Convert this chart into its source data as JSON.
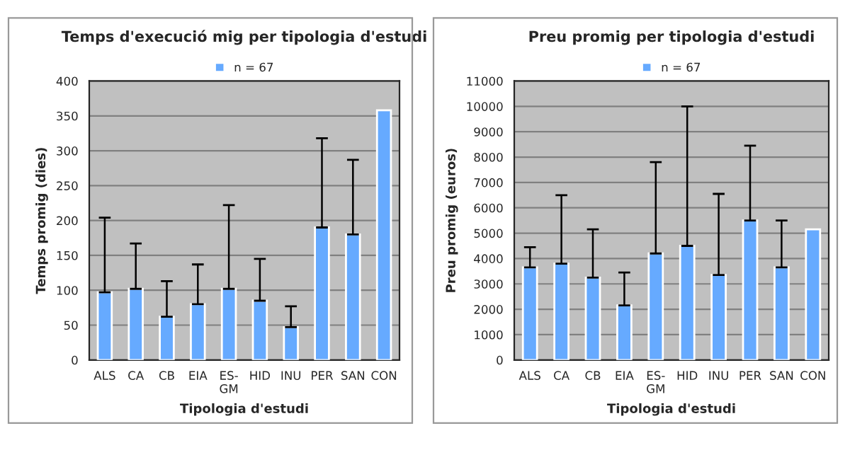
{
  "chart_data": [
    {
      "type": "bar",
      "title": "Temps d'execució mig per tipologia d'estudi",
      "xlabel": "Tipologia d'estudi",
      "ylabel": "Temps promig (dies)",
      "legend": "top",
      "categories": [
        "ALS",
        "CA",
        "CB",
        "EIA",
        "ES-\nGM",
        "HID",
        "INU",
        "PER",
        "SAN",
        "CON"
      ],
      "series": [
        {
          "name": "n = 67",
          "color": "#66aaff",
          "values": [
            97,
            102,
            62,
            80,
            102,
            85,
            47,
            190,
            180,
            358
          ],
          "errors": [
            [
              97,
              204
            ],
            [
              102,
              167
            ],
            [
              62,
              113
            ],
            [
              80,
              137
            ],
            [
              102,
              222
            ],
            [
              85,
              145
            ],
            [
              47,
              77
            ],
            [
              190,
              318
            ],
            [
              180,
              287
            ],
            null
          ]
        }
      ],
      "ylim": [
        0,
        400
      ],
      "yticks": [
        0,
        50,
        100,
        150,
        200,
        250,
        300,
        350,
        400
      ],
      "grid": "y"
    },
    {
      "type": "bar",
      "title": "Preu promig per tipologia d'estudi",
      "xlabel": "Tipologia d'estudi",
      "ylabel": "Preu promig (euros)",
      "legend": "top",
      "categories": [
        "ALS",
        "CA",
        "CB",
        "EIA",
        "ES-\nGM",
        "HID",
        "INU",
        "PER",
        "SAN",
        "CON"
      ],
      "series": [
        {
          "name": "n = 67",
          "color": "#66aaff",
          "values": [
            3650,
            3800,
            3250,
            2150,
            4200,
            4500,
            3350,
            5500,
            3650,
            5150
          ],
          "errors": [
            [
              3650,
              4450
            ],
            [
              3800,
              6500
            ],
            [
              3250,
              5150
            ],
            [
              2150,
              3450
            ],
            [
              4200,
              7800
            ],
            [
              4500,
              10000
            ],
            [
              3350,
              6550
            ],
            [
              5500,
              8450
            ],
            [
              3650,
              5500
            ],
            null
          ]
        }
      ],
      "ylim": [
        0,
        11000
      ],
      "yticks": [
        0,
        1000,
        2000,
        3000,
        4000,
        5000,
        6000,
        7000,
        8000,
        9000,
        10000,
        11000
      ],
      "grid": "y"
    }
  ]
}
